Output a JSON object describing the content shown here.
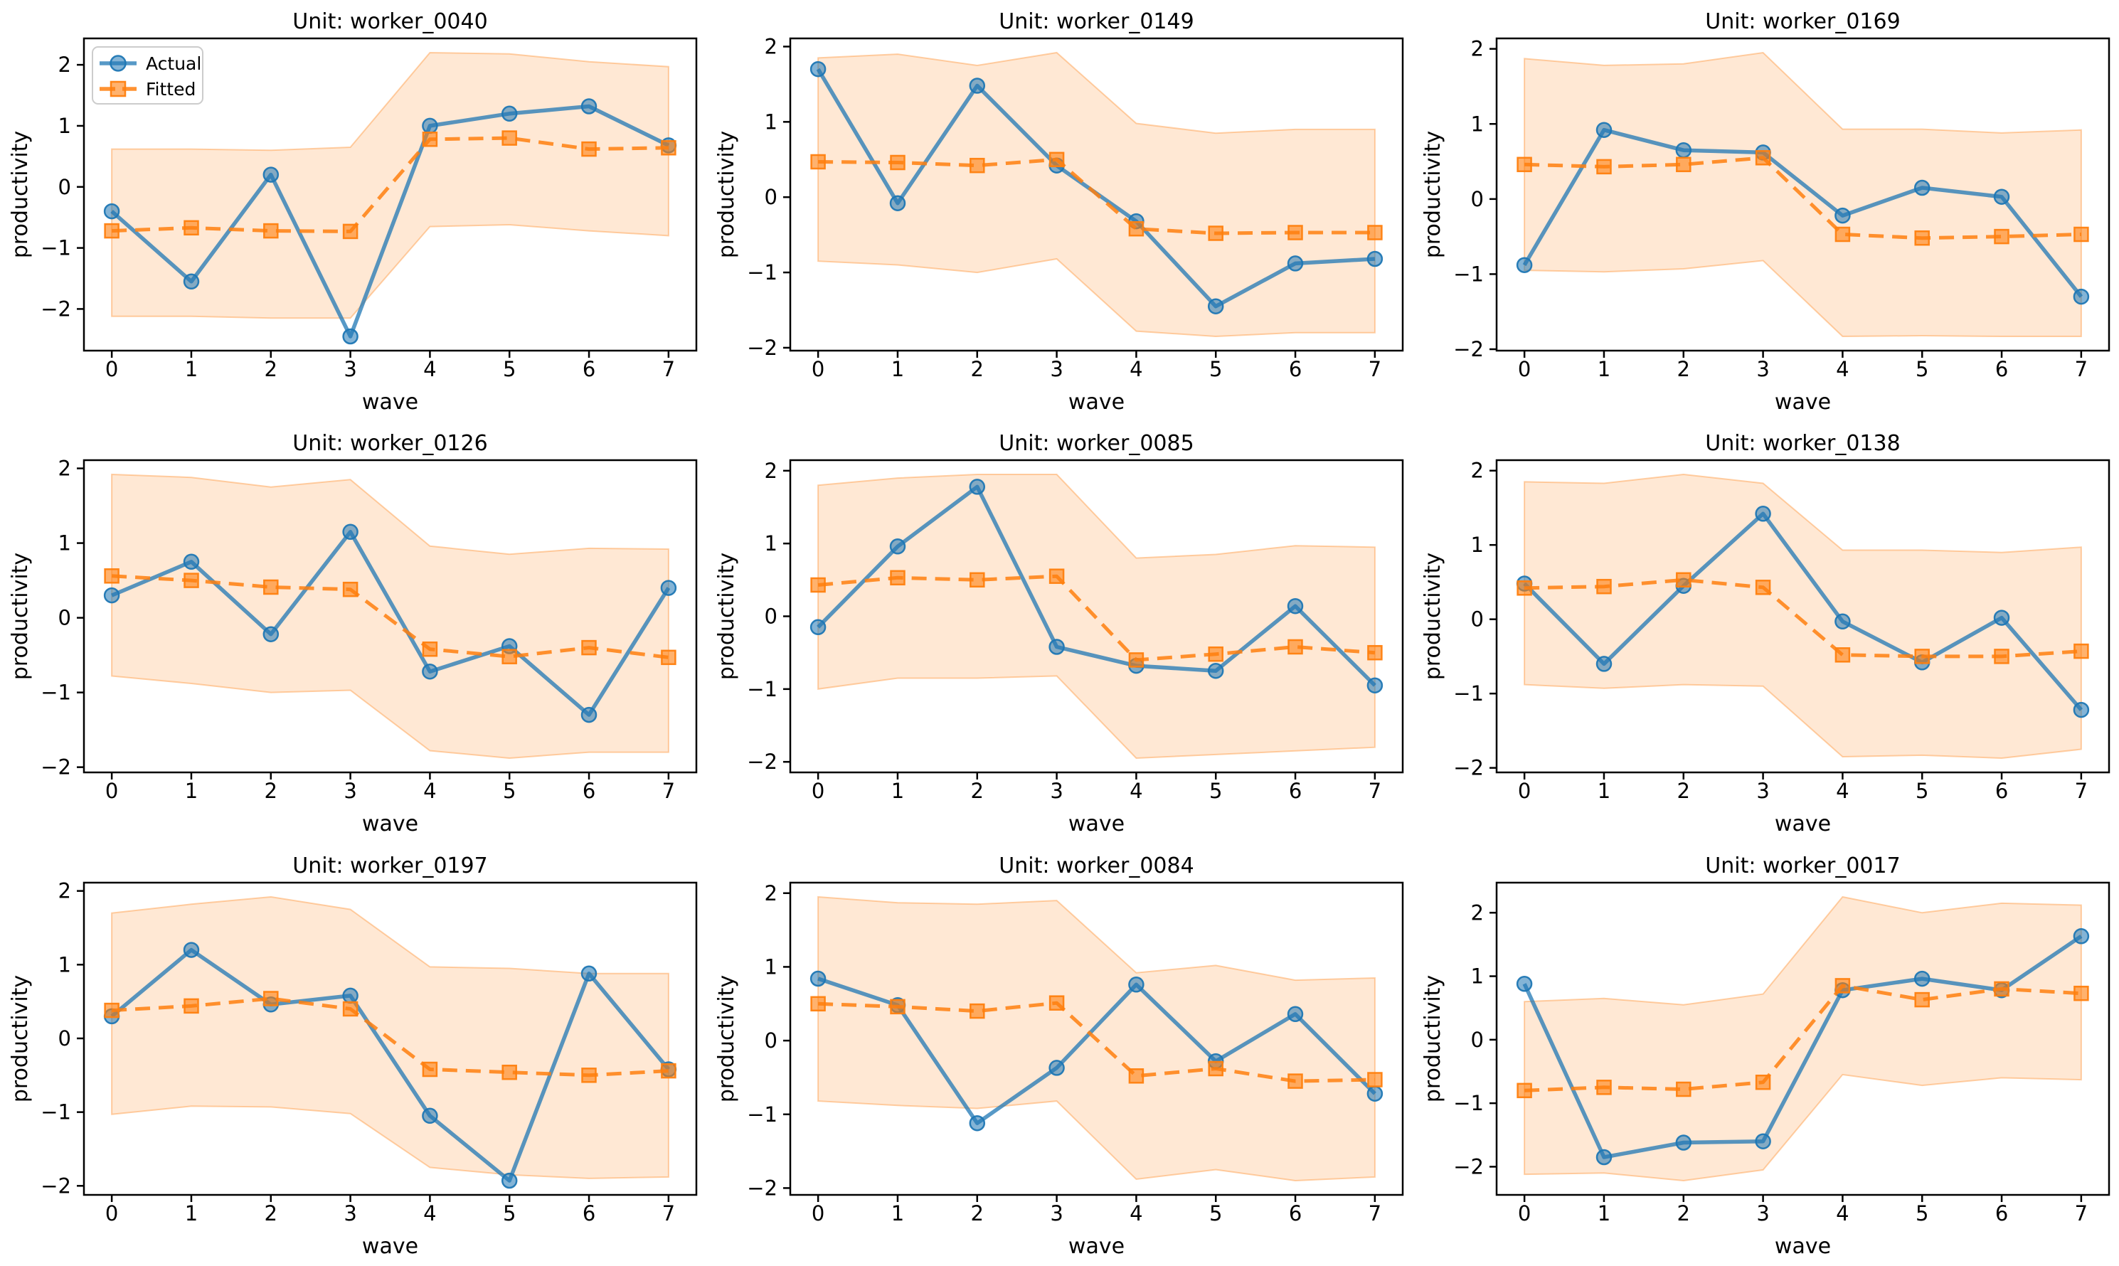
{
  "figure": {
    "xlabel": "wave",
    "ylabel": "productivity",
    "x_ticks": [
      0,
      1,
      2,
      3,
      4,
      5,
      6,
      7
    ],
    "y_ticks": [
      -2,
      -1,
      0,
      1,
      2
    ],
    "xlim": [
      -0.35,
      7.35
    ],
    "legend": {
      "items": [
        {
          "label": "Actual",
          "marker": "circle",
          "line": "solid"
        },
        {
          "label": "Fitted",
          "marker": "square",
          "line": "dashed"
        }
      ],
      "location": "upper-left-of-first-subplot"
    },
    "colors": {
      "actual_base": "#1f77b4",
      "fitted_base": "#ff7f0e",
      "actual_line": "rgba(31,119,180,0.75)",
      "actual_marker_fill": "rgba(31,119,180,0.55)",
      "actual_marker_edge": "rgba(31,119,180,0.95)",
      "fitted_line": "rgba(255,127,14,0.85)",
      "fitted_marker_fill": "rgba(255,127,14,0.6)",
      "fitted_marker_edge": "rgba(255,127,14,0.95)",
      "band_fill": "rgba(255,127,14,0.18)",
      "band_edge": "rgba(255,127,14,0.35)",
      "spine": "#000000",
      "legend_border": "#cccccc",
      "text": "#000000"
    }
  },
  "chart_data": [
    {
      "type": "line",
      "title": "Unit: worker_0040",
      "xlabel": "wave",
      "ylabel": "productivity",
      "x": [
        0,
        1,
        2,
        3,
        4,
        5,
        6,
        7
      ],
      "series": [
        {
          "name": "Actual",
          "values": [
            -0.4,
            -1.55,
            0.2,
            -2.45,
            1.0,
            1.2,
            1.32,
            0.68
          ]
        },
        {
          "name": "Fitted",
          "values": [
            -0.72,
            -0.67,
            -0.72,
            -0.73,
            0.78,
            0.8,
            0.62,
            0.64
          ]
        }
      ],
      "band": {
        "upper": [
          0.62,
          0.62,
          0.6,
          0.65,
          2.2,
          2.18,
          2.05,
          1.97
        ],
        "lower": [
          -2.12,
          -2.12,
          -2.15,
          -2.15,
          -0.65,
          -0.62,
          -0.72,
          -0.8
        ]
      },
      "legend_visible": true
    },
    {
      "type": "line",
      "title": "Unit: worker_0149",
      "xlabel": "wave",
      "ylabel": "productivity",
      "x": [
        0,
        1,
        2,
        3,
        4,
        5,
        6,
        7
      ],
      "series": [
        {
          "name": "Actual",
          "values": [
            1.7,
            -0.08,
            1.48,
            0.42,
            -0.32,
            -1.45,
            -0.88,
            -0.82
          ]
        },
        {
          "name": "Fitted",
          "values": [
            0.47,
            0.46,
            0.42,
            0.5,
            -0.42,
            -0.48,
            -0.47,
            -0.47
          ]
        }
      ],
      "band": {
        "upper": [
          1.85,
          1.9,
          1.75,
          1.92,
          0.98,
          0.85,
          0.9,
          0.9
        ],
        "lower": [
          -0.85,
          -0.9,
          -1.0,
          -0.82,
          -1.78,
          -1.85,
          -1.8,
          -1.8
        ]
      },
      "legend_visible": false
    },
    {
      "type": "line",
      "title": "Unit: worker_0169",
      "xlabel": "wave",
      "ylabel": "productivity",
      "x": [
        0,
        1,
        2,
        3,
        4,
        5,
        6,
        7
      ],
      "series": [
        {
          "name": "Actual",
          "values": [
            -0.88,
            0.92,
            0.65,
            0.62,
            -0.22,
            0.15,
            0.03,
            -1.3
          ]
        },
        {
          "name": "Fitted",
          "values": [
            0.46,
            0.43,
            0.46,
            0.55,
            -0.47,
            -0.52,
            -0.5,
            -0.47
          ]
        }
      ],
      "band": {
        "upper": [
          1.87,
          1.78,
          1.8,
          1.95,
          0.93,
          0.93,
          0.88,
          0.92
        ],
        "lower": [
          -0.95,
          -0.97,
          -0.93,
          -0.82,
          -1.83,
          -1.82,
          -1.83,
          -1.83
        ]
      },
      "legend_visible": false
    },
    {
      "type": "line",
      "title": "Unit: worker_0126",
      "xlabel": "wave",
      "ylabel": "productivity",
      "x": [
        0,
        1,
        2,
        3,
        4,
        5,
        6,
        7
      ],
      "series": [
        {
          "name": "Actual",
          "values": [
            0.3,
            0.75,
            -0.22,
            1.15,
            -0.72,
            -0.38,
            -1.3,
            0.4
          ]
        },
        {
          "name": "Fitted",
          "values": [
            0.56,
            0.5,
            0.41,
            0.38,
            -0.42,
            -0.52,
            -0.4,
            -0.53
          ]
        }
      ],
      "band": {
        "upper": [
          1.92,
          1.88,
          1.75,
          1.85,
          0.96,
          0.85,
          0.93,
          0.92
        ],
        "lower": [
          -0.78,
          -0.88,
          -1.0,
          -0.97,
          -1.78,
          -1.88,
          -1.8,
          -1.8
        ]
      },
      "legend_visible": false
    },
    {
      "type": "line",
      "title": "Unit: worker_0085",
      "xlabel": "wave",
      "ylabel": "productivity",
      "x": [
        0,
        1,
        2,
        3,
        4,
        5,
        6,
        7
      ],
      "series": [
        {
          "name": "Actual",
          "values": [
            -0.15,
            0.96,
            1.78,
            -0.42,
            -0.68,
            -0.75,
            0.14,
            -0.95
          ]
        },
        {
          "name": "Fitted",
          "values": [
            0.43,
            0.53,
            0.5,
            0.55,
            -0.6,
            -0.52,
            -0.42,
            -0.5
          ]
        }
      ],
      "band": {
        "upper": [
          1.8,
          1.9,
          1.95,
          1.95,
          0.8,
          0.85,
          0.97,
          0.95
        ],
        "lower": [
          -1.0,
          -0.85,
          -0.85,
          -0.82,
          -1.95,
          -1.9,
          -1.85,
          -1.8
        ]
      },
      "legend_visible": false
    },
    {
      "type": "line",
      "title": "Unit: worker_0138",
      "xlabel": "wave",
      "ylabel": "productivity",
      "x": [
        0,
        1,
        2,
        3,
        4,
        5,
        6,
        7
      ],
      "series": [
        {
          "name": "Actual",
          "values": [
            0.48,
            -0.6,
            0.45,
            1.42,
            -0.03,
            -0.58,
            0.02,
            -1.22
          ]
        },
        {
          "name": "Fitted",
          "values": [
            0.42,
            0.44,
            0.53,
            0.43,
            -0.48,
            -0.5,
            -0.5,
            -0.43
          ]
        }
      ],
      "band": {
        "upper": [
          1.85,
          1.83,
          1.95,
          1.83,
          0.93,
          0.93,
          0.9,
          0.97
        ],
        "lower": [
          -0.88,
          -0.93,
          -0.88,
          -0.9,
          -1.85,
          -1.83,
          -1.87,
          -1.75
        ]
      },
      "legend_visible": false
    },
    {
      "type": "line",
      "title": "Unit: worker_0197",
      "xlabel": "wave",
      "ylabel": "productivity",
      "x": [
        0,
        1,
        2,
        3,
        4,
        5,
        6,
        7
      ],
      "series": [
        {
          "name": "Actual",
          "values": [
            0.3,
            1.2,
            0.46,
            0.58,
            -1.05,
            -1.93,
            0.88,
            -0.42
          ]
        },
        {
          "name": "Fitted",
          "values": [
            0.38,
            0.44,
            0.54,
            0.4,
            -0.42,
            -0.46,
            -0.5,
            -0.44
          ]
        }
      ],
      "band": {
        "upper": [
          1.7,
          1.82,
          1.92,
          1.75,
          0.97,
          0.95,
          0.88,
          0.88
        ],
        "lower": [
          -1.03,
          -0.92,
          -0.93,
          -1.02,
          -1.75,
          -1.85,
          -1.9,
          -1.88
        ]
      },
      "legend_visible": false
    },
    {
      "type": "line",
      "title": "Unit: worker_0084",
      "xlabel": "wave",
      "ylabel": "productivity",
      "x": [
        0,
        1,
        2,
        3,
        4,
        5,
        6,
        7
      ],
      "series": [
        {
          "name": "Actual",
          "values": [
            0.84,
            0.48,
            -1.12,
            -0.37,
            0.76,
            -0.28,
            0.36,
            -0.72
          ]
        },
        {
          "name": "Fitted",
          "values": [
            0.5,
            0.46,
            0.4,
            0.51,
            -0.48,
            -0.38,
            -0.55,
            -0.53
          ]
        }
      ],
      "band": {
        "upper": [
          1.95,
          1.87,
          1.85,
          1.9,
          0.92,
          1.02,
          0.82,
          0.85
        ],
        "lower": [
          -0.82,
          -0.88,
          -0.92,
          -0.82,
          -1.88,
          -1.75,
          -1.9,
          -1.85
        ]
      },
      "legend_visible": false
    },
    {
      "type": "line",
      "title": "Unit: worker_0017",
      "xlabel": "wave",
      "ylabel": "productivity",
      "x": [
        0,
        1,
        2,
        3,
        4,
        5,
        6,
        7
      ],
      "series": [
        {
          "name": "Actual",
          "values": [
            0.88,
            -1.85,
            -1.62,
            -1.6,
            0.78,
            0.96,
            0.78,
            1.63
          ]
        },
        {
          "name": "Fitted",
          "values": [
            -0.8,
            -0.75,
            -0.78,
            -0.67,
            0.85,
            0.63,
            0.8,
            0.73
          ]
        }
      ],
      "band": {
        "upper": [
          0.6,
          0.65,
          0.55,
          0.72,
          2.25,
          2.0,
          2.15,
          2.12
        ],
        "lower": [
          -2.12,
          -2.1,
          -2.22,
          -2.05,
          -0.55,
          -0.72,
          -0.6,
          -0.63
        ]
      },
      "legend_visible": false
    }
  ]
}
